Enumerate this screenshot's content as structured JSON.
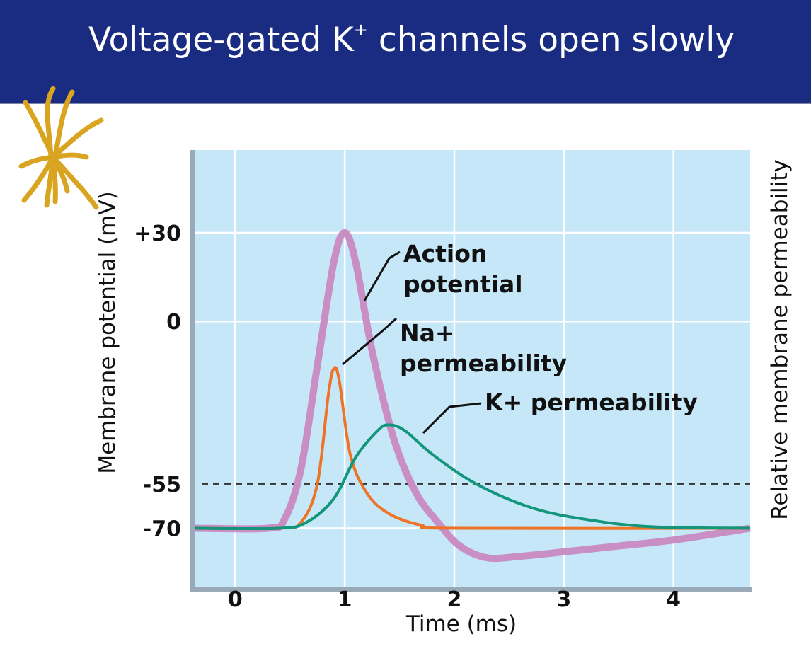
{
  "slide": {
    "title_prefix": "Voltage-gated K",
    "title_sup": "+",
    "title_suffix": " channels open slowly"
  },
  "chart_data": {
    "type": "line",
    "title": "Voltage-gated K+ channels open slowly",
    "xlabel": "Time (ms)",
    "ylabel": "Membrane potential (mV)",
    "ylabel_right": "Relative membrane permeability",
    "xlim": [
      -0.37,
      4.7
    ],
    "ylim": [
      -90,
      58
    ],
    "xticks": [
      0,
      1,
      2,
      3,
      4
    ],
    "xtick_labels": [
      "0",
      "1",
      "2",
      "3",
      "4"
    ],
    "yticks": [
      30,
      0,
      -55,
      -70
    ],
    "ytick_labels": [
      "+30",
      "0",
      "-55",
      "-70"
    ],
    "threshold": -55,
    "grid": true,
    "series": [
      {
        "name": "Action potential",
        "color": "#c98ec4",
        "label_lines": [
          "Action",
          "potential"
        ],
        "points": [
          [
            -0.37,
            -70
          ],
          [
            0.3,
            -70
          ],
          [
            0.45,
            -67
          ],
          [
            0.6,
            -50
          ],
          [
            0.75,
            -15
          ],
          [
            0.9,
            20
          ],
          [
            1.0,
            30
          ],
          [
            1.1,
            20
          ],
          [
            1.25,
            -10
          ],
          [
            1.45,
            -40
          ],
          [
            1.65,
            -58
          ],
          [
            1.85,
            -68
          ],
          [
            2.05,
            -76
          ],
          [
            2.3,
            -80
          ],
          [
            2.6,
            -79.5
          ],
          [
            3.0,
            -78
          ],
          [
            3.5,
            -76
          ],
          [
            4.0,
            -74
          ],
          [
            4.7,
            -70
          ]
        ]
      },
      {
        "name": "Na+ permeability",
        "color": "#ee7326",
        "label_lines": [
          "Na+",
          "permeability"
        ],
        "points": [
          [
            -0.37,
            -70
          ],
          [
            0.4,
            -70
          ],
          [
            0.6,
            -68
          ],
          [
            0.75,
            -55
          ],
          [
            0.85,
            -25
          ],
          [
            0.9,
            -16
          ],
          [
            0.95,
            -20
          ],
          [
            1.05,
            -45
          ],
          [
            1.2,
            -58
          ],
          [
            1.4,
            -65
          ],
          [
            1.7,
            -69
          ],
          [
            2.0,
            -70
          ],
          [
            4.7,
            -70
          ]
        ]
      },
      {
        "name": "K+ permeability",
        "color": "#13967a",
        "label_lines": [
          "K+ permeability"
        ],
        "points": [
          [
            -0.37,
            -70
          ],
          [
            0.4,
            -70
          ],
          [
            0.65,
            -68
          ],
          [
            0.9,
            -60
          ],
          [
            1.1,
            -46
          ],
          [
            1.3,
            -37
          ],
          [
            1.4,
            -35
          ],
          [
            1.55,
            -37
          ],
          [
            1.8,
            -45
          ],
          [
            2.2,
            -55
          ],
          [
            2.7,
            -63
          ],
          [
            3.2,
            -67
          ],
          [
            3.8,
            -69.5
          ],
          [
            4.7,
            -70
          ]
        ]
      }
    ]
  }
}
